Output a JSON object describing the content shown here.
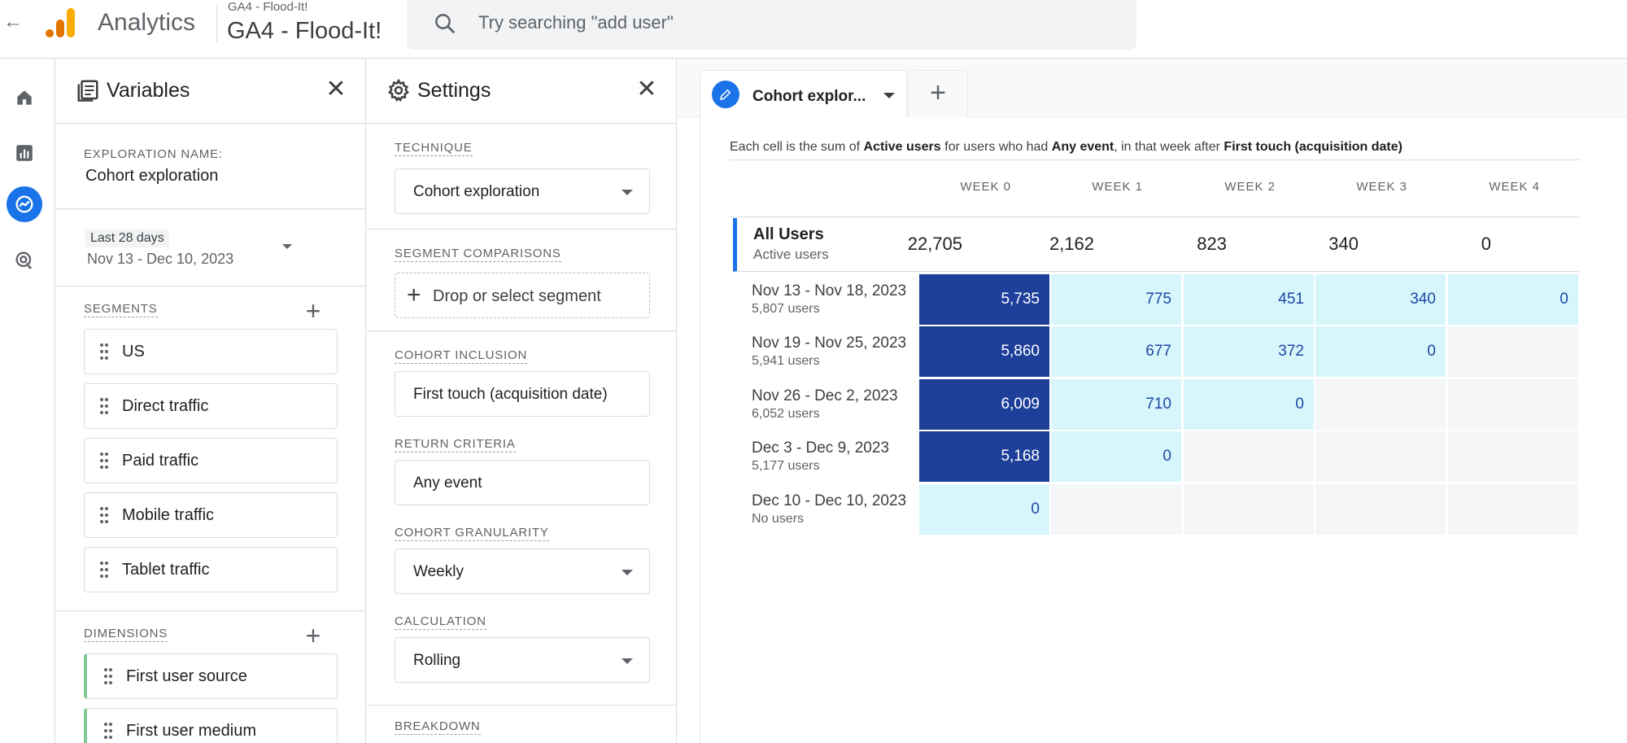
{
  "topbar": {
    "back_icon": "arrow-left-icon",
    "app_title": "Analytics",
    "account_name": "GA4 - Flood-It!",
    "property_name": "GA4 - Flood-It!",
    "search_placeholder": "Try searching \"add user\""
  },
  "rail": {
    "items": [
      "home-icon",
      "reports-icon",
      "explore-icon",
      "advertising-icon"
    ],
    "active": "explore-icon",
    "accent": "#1a73e8"
  },
  "variables": {
    "title": "Variables",
    "exploration_label": "EXPLORATION NAME:",
    "exploration_name": "Cohort exploration",
    "date_chip": "Last 28 days",
    "date_range": "Nov 13 - Dec 10, 2023",
    "segments_label": "SEGMENTS",
    "segments": [
      "US",
      "Direct traffic",
      "Paid traffic",
      "Mobile traffic",
      "Tablet traffic"
    ],
    "dimensions_label": "DIMENSIONS",
    "dimensions": [
      "First user source",
      "First user medium"
    ]
  },
  "settings": {
    "title": "Settings",
    "technique_label": "TECHNIQUE",
    "technique": "Cohort exploration",
    "segment_comparisons_label": "SEGMENT COMPARISONS",
    "drop_segment": "Drop or select segment",
    "cohort_inclusion_label": "COHORT INCLUSION",
    "cohort_inclusion": "First touch (acquisition date)",
    "return_criteria_label": "RETURN CRITERIA",
    "return_criteria": "Any event",
    "cohort_granularity_label": "COHORT GRANULARITY",
    "cohort_granularity": "Weekly",
    "calculation_label": "CALCULATION",
    "calculation": "Rolling",
    "breakdown_label": "BREAKDOWN"
  },
  "canvas": {
    "tab_label": "Cohort explor...",
    "description": {
      "p1": "Each cell is the sum of ",
      "metric": "Active users",
      "p2": " for users who had ",
      "event": "Any event",
      "p3": ", in that week after ",
      "inclusion": "First touch (acquisition date)",
      "p4": ""
    },
    "week_headers": [
      "WEEK 0",
      "WEEK 1",
      "WEEK 2",
      "WEEK 3",
      "WEEK 4"
    ],
    "all_users": {
      "title": "All Users",
      "subtitle": "Active users",
      "values": [
        "22,705",
        "2,162",
        "823",
        "340",
        "0"
      ]
    },
    "cohorts": [
      {
        "range": "Nov 13 - Nov 18, 2023",
        "users": "5,807 users",
        "values": [
          "5,735",
          "775",
          "451",
          "340",
          "0"
        ]
      },
      {
        "range": "Nov 19 - Nov 25, 2023",
        "users": "5,941 users",
        "values": [
          "5,860",
          "677",
          "372",
          "0"
        ]
      },
      {
        "range": "Nov 26 - Dec 2, 2023",
        "users": "6,052 users",
        "values": [
          "6,009",
          "710",
          "0"
        ]
      },
      {
        "range": "Dec 3 - Dec 9, 2023",
        "users": "5,177 users",
        "values": [
          "5,168",
          "0"
        ]
      },
      {
        "range": "Dec 10 - Dec 10, 2023",
        "users": "No users",
        "values": [
          "0"
        ]
      }
    ],
    "colors": {
      "dark_cell": "#1e3f9a",
      "light_cell": "#d7f6fb",
      "empty_cell": "#f5f6f7"
    }
  }
}
